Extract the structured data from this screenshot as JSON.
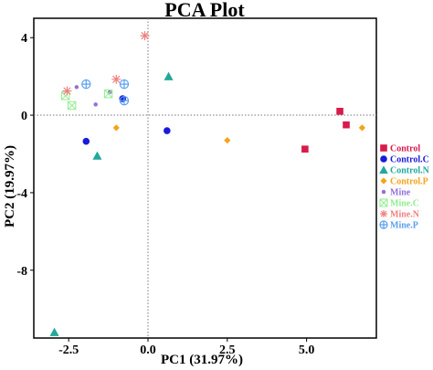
{
  "chart_data": {
    "type": "scatter",
    "title": "PCA Plot",
    "xlabel": "PC1 (31.97%)",
    "ylabel": "PC2 (19.97%)",
    "xlim": [
      -3.6,
      7.2
    ],
    "ylim": [
      -11.5,
      5.0
    ],
    "xticks": [
      -2.5,
      0.0,
      2.5,
      5.0
    ],
    "xtick_labels": [
      "-2.5",
      "0.0",
      "2.5",
      "5.0"
    ],
    "yticks": [
      4,
      0,
      -4,
      -8
    ],
    "ytick_labels": [
      "4",
      "0",
      "-4",
      "-8"
    ],
    "grid": false,
    "reference_lines": {
      "x": 0,
      "y": 0,
      "style": "dotted"
    },
    "legend_position": "right",
    "series": [
      {
        "name": "Control",
        "color": "#d81b4a",
        "marker": "square",
        "points": [
          [
            6.05,
            0.2
          ],
          [
            6.25,
            -0.5
          ],
          [
            4.95,
            -1.75
          ]
        ]
      },
      {
        "name": "Control.C",
        "color": "#1a1adb",
        "marker": "circle",
        "points": [
          [
            -0.8,
            0.85
          ],
          [
            0.6,
            -0.8
          ],
          [
            -1.95,
            -1.35
          ]
        ]
      },
      {
        "name": "Control.N",
        "color": "#22a99a",
        "marker": "triangle",
        "points": [
          [
            0.65,
            2.0
          ],
          [
            -1.6,
            -2.1
          ],
          [
            -2.95,
            -11.2
          ]
        ]
      },
      {
        "name": "Control.P",
        "color": "#f5a31a",
        "marker": "diamond",
        "points": [
          [
            -1.0,
            -0.65
          ],
          [
            2.5,
            -1.3
          ],
          [
            6.75,
            -0.65
          ]
        ]
      },
      {
        "name": "Mine",
        "color": "#9370db",
        "marker": "dot",
        "points": [
          [
            -2.25,
            1.45
          ],
          [
            -1.2,
            1.2
          ],
          [
            -1.65,
            0.55
          ]
        ]
      },
      {
        "name": "Mine.C",
        "color": "#90ee90",
        "marker": "square-x",
        "points": [
          [
            -2.6,
            1.0
          ],
          [
            -2.4,
            0.5
          ],
          [
            -1.25,
            1.1
          ]
        ]
      },
      {
        "name": "Mine.N",
        "color": "#f08080",
        "marker": "asterisk",
        "points": [
          [
            -0.1,
            4.1
          ],
          [
            -1.0,
            1.85
          ],
          [
            -2.55,
            1.25
          ]
        ]
      },
      {
        "name": "Mine.P",
        "color": "#5aa0ee",
        "marker": "circle-plus",
        "points": [
          [
            -1.95,
            1.6
          ],
          [
            -0.75,
            1.6
          ],
          [
            -0.75,
            0.75
          ]
        ]
      }
    ]
  }
}
